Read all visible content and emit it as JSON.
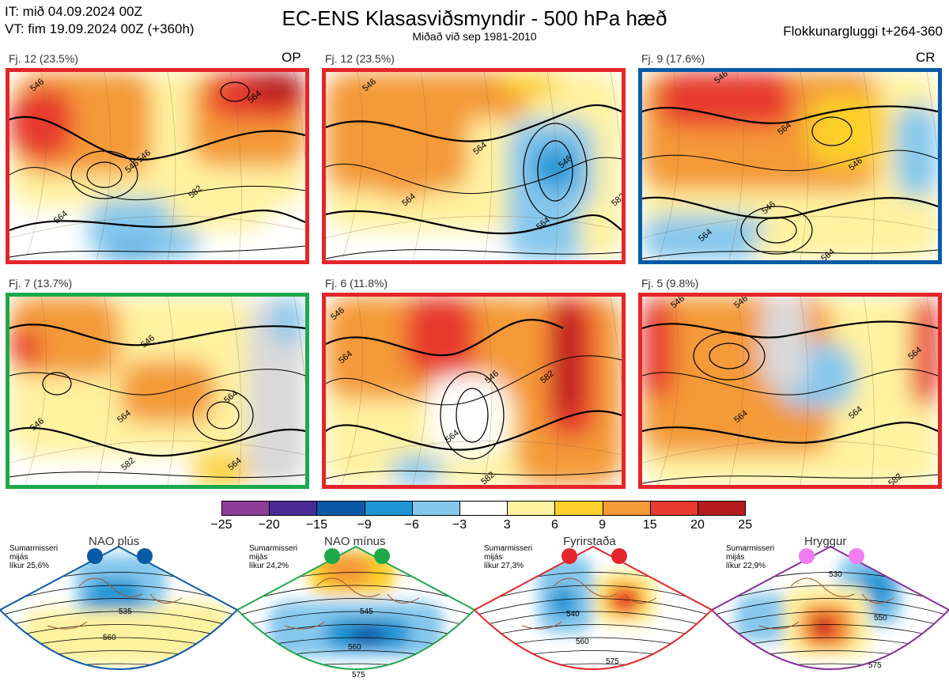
{
  "header": {
    "it_line": "IT: mið 04.09.2024 00Z",
    "vt_line": "VT: fim 19.09.2024 00Z  (+360h)",
    "title": "EC-ENS Klasasviðsmyndir - 500 hPa hæð",
    "subtitle": "Miðað við sep 1981-2010",
    "window": "Flokkunargluggi t+264-360"
  },
  "colors": {
    "frame_red": "#e3262a",
    "frame_blue": "#0a5aa8",
    "frame_green": "#1fa84a",
    "frame_purple": "#8a2e9a"
  },
  "clusters": [
    {
      "caption": "Fj. 12 (23.5%)",
      "tag": "OP",
      "frame": "red",
      "labels": [
        "546",
        "546",
        "564",
        "564",
        "582",
        "546"
      ]
    },
    {
      "caption": "Fj. 12 (23.5%)",
      "tag": "",
      "frame": "red",
      "labels": [
        "546",
        "564",
        "564",
        "546",
        "582",
        "564"
      ]
    },
    {
      "caption": "Fj. 9 (17.6%)",
      "tag": "CR",
      "frame": "blue",
      "labels": [
        "546",
        "564",
        "546",
        "546",
        "564",
        "564"
      ]
    },
    {
      "caption": "Fj. 7 (13.7%)",
      "tag": "",
      "frame": "green",
      "labels": [
        "546",
        "564",
        "546",
        "564",
        "582",
        "564"
      ]
    },
    {
      "caption": "Fj. 6 (11.8%)",
      "tag": "",
      "frame": "red",
      "labels": [
        "564",
        "546",
        "564",
        "582",
        "582",
        "546"
      ]
    },
    {
      "caption": "Fj. 5 (9.8%)",
      "tag": "",
      "frame": "red",
      "labels": [
        "546",
        "546",
        "564",
        "564",
        "582",
        "564"
      ]
    }
  ],
  "chart_data": {
    "type": "heatmap",
    "title": "EC-ENS Klasasviðsmyndir - 500 hPa hæð",
    "colorbar": {
      "ticks": [
        "−25",
        "−20",
        "−15",
        "−9",
        "−6",
        "−3",
        "3",
        "6",
        "9",
        "15",
        "20",
        "25"
      ],
      "colors": [
        "#8c3f96",
        "#4a2b96",
        "#0a5aa8",
        "#1f96d6",
        "#85c7ed",
        "#ffffff",
        "#fff2a0",
        "#fccf2a",
        "#f49a38",
        "#e83a2e",
        "#b71c1c"
      ]
    }
  },
  "regimes": [
    {
      "title": "NAO plús",
      "info": [
        "Sumarmisseri",
        "mijás",
        "líkur 25,6%"
      ],
      "labels": [
        "535",
        "560"
      ],
      "dot": "#0a5aa8",
      "frame": "blue"
    },
    {
      "title": "NAO mínus",
      "info": [
        "Sumarmisseri",
        "mijás",
        "líkur 24,2%"
      ],
      "labels": [
        "545",
        "560",
        "575"
      ],
      "dot": "#1fa84a",
      "frame": "green"
    },
    {
      "title": "Fyrirstaða",
      "info": [
        "Sumarmisseri",
        "mijás",
        "líkur 27,3%"
      ],
      "labels": [
        "540",
        "560",
        "575"
      ],
      "dot": "#e3262a",
      "frame": "red"
    },
    {
      "title": "Hryggur",
      "info": [
        "Sumarmisseri",
        "mijás",
        "líkur 22,9%"
      ],
      "labels": [
        "530",
        "550",
        "575"
      ],
      "dot": "#f07ef0",
      "frame": "purple"
    }
  ]
}
